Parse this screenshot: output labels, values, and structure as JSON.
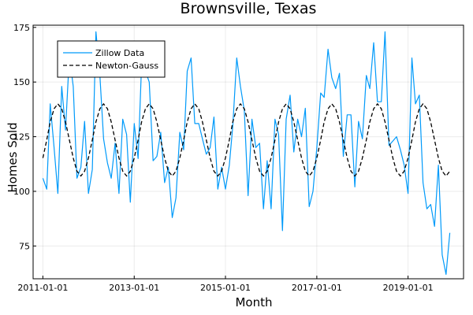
{
  "chart_data": {
    "type": "line",
    "title": "Brownsville, Texas",
    "xlabel": "Month",
    "ylabel": "Homes Sold",
    "x_tick_labels": [
      "2011-01-01",
      "2013-01-01",
      "2015-01-01",
      "2017-01-01",
      "2019-01-01"
    ],
    "y_ticks": [
      75,
      100,
      125,
      150,
      175
    ],
    "xlim": [
      "2010-10-15",
      "2020-03-20"
    ],
    "ylim": [
      60,
      176
    ],
    "grid": true,
    "legend_position": "top-left",
    "series": [
      {
        "name": "Zillow Data",
        "color": "#009AFA",
        "style": "solid",
        "x": [
          "2011-01-01",
          "2011-02-01",
          "2011-03-01",
          "2011-04-01",
          "2011-05-01",
          "2011-06-01",
          "2011-07-01",
          "2011-08-01",
          "2011-09-01",
          "2011-10-01",
          "2011-11-01",
          "2011-12-01",
          "2012-01-01",
          "2012-02-01",
          "2012-03-01",
          "2012-04-01",
          "2012-05-01",
          "2012-06-01",
          "2012-07-01",
          "2012-08-01",
          "2012-09-01",
          "2012-10-01",
          "2012-11-01",
          "2012-12-01",
          "2013-01-01",
          "2013-02-01",
          "2013-03-01",
          "2013-04-01",
          "2013-05-01",
          "2013-06-01",
          "2013-07-01",
          "2013-08-01",
          "2013-09-01",
          "2013-10-01",
          "2013-11-01",
          "2013-12-01",
          "2014-01-01",
          "2014-02-01",
          "2014-03-01",
          "2014-04-01",
          "2014-05-01",
          "2014-06-01",
          "2014-07-01",
          "2014-08-01",
          "2014-09-01",
          "2014-10-01",
          "2014-11-01",
          "2014-12-01",
          "2015-01-01",
          "2015-02-01",
          "2015-03-01",
          "2015-04-01",
          "2015-05-01",
          "2015-06-01",
          "2015-07-01",
          "2015-08-01",
          "2015-09-01",
          "2015-10-01",
          "2015-11-01",
          "2015-12-01",
          "2016-01-01",
          "2016-02-01",
          "2016-03-01",
          "2016-04-01",
          "2016-05-01",
          "2016-06-01",
          "2016-07-01",
          "2016-08-01",
          "2016-09-01",
          "2016-10-01",
          "2016-11-01",
          "2016-12-01",
          "2017-01-01",
          "2017-02-01",
          "2017-03-01",
          "2017-04-01",
          "2017-05-01",
          "2017-06-01",
          "2017-07-01",
          "2017-08-01",
          "2017-09-01",
          "2017-10-01",
          "2017-11-01",
          "2017-12-01",
          "2018-01-01",
          "2018-02-01",
          "2018-03-01",
          "2018-04-01",
          "2018-05-01",
          "2018-06-01",
          "2018-07-01",
          "2018-08-01",
          "2018-09-01",
          "2018-10-01",
          "2018-11-01",
          "2018-12-01",
          "2019-01-01",
          "2019-02-01",
          "2019-03-01",
          "2019-04-01",
          "2019-05-01",
          "2019-06-01",
          "2019-07-01",
          "2019-08-01",
          "2019-09-01",
          "2019-10-01",
          "2019-11-01",
          "2019-12-01"
        ],
        "y": [
          106,
          101,
          140,
          120,
          99,
          148,
          128,
          162,
          148,
          106,
          111,
          132,
          99,
          110,
          173,
          153,
          124,
          113,
          106,
          122,
          99,
          133,
          126,
          95,
          131,
          115,
          158,
          155,
          150,
          114,
          116,
          127,
          104,
          111,
          88,
          97,
          127,
          119,
          155,
          161,
          131,
          131,
          124,
          117,
          120,
          134,
          101,
          111,
          101,
          112,
          130,
          161,
          148,
          137,
          98,
          133,
          120,
          122,
          92,
          114,
          92,
          133,
          126,
          82,
          133,
          144,
          118,
          133,
          125,
          138,
          93,
          100,
          120,
          145,
          143,
          165,
          152,
          147,
          154,
          116,
          135,
          135,
          102,
          132,
          124,
          153,
          147,
          168,
          141,
          141,
          173,
          121,
          123,
          125,
          119,
          112,
          99,
          161,
          140,
          144,
          104,
          92,
          94,
          84,
          112,
          71,
          62,
          81
        ]
      },
      {
        "name": "Newton-Gauss",
        "color": "#000000",
        "style": "dashed",
        "x_start": "2011-01-01",
        "x_end": "2019-12-01",
        "model": {
          "mean": 123.5,
          "amplitude": 16.5,
          "period_months": 12,
          "phase_months": 1
        }
      }
    ]
  }
}
